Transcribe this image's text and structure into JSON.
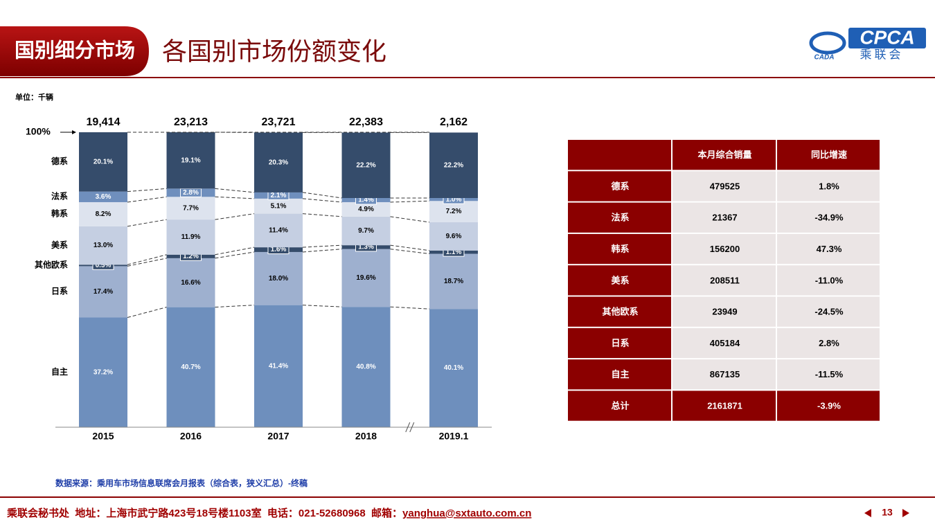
{
  "header": {
    "section": "国别细分市场",
    "title": "各国别市场份额变化",
    "logo_main": "CPCA",
    "logo_sub": "乘联会",
    "logo_left": "CADA"
  },
  "chart_data": {
    "type": "stacked_bar_100",
    "unit": "单位：千辆",
    "categories": [
      "2015",
      "2016",
      "2017",
      "2018",
      "2019.1"
    ],
    "totals": {
      "values": [
        19414,
        23213,
        23721,
        22383,
        2162
      ],
      "value_labels": [
        "19,414",
        "23,213",
        "23,721",
        "22,383",
        "2,162"
      ]
    },
    "ylim": [
      0,
      100
    ],
    "yticks": [
      {
        "value": 100,
        "label": "100%"
      }
    ],
    "series": [
      {
        "name": "自主",
        "color": "#6e8fbd",
        "values": [
          37.2,
          40.7,
          41.4,
          40.8,
          40.1
        ],
        "value_labels": [
          "37.2%",
          "40.7%",
          "41.4%",
          "40.8%",
          "40.1%"
        ]
      },
      {
        "name": "日系",
        "color": "#9eb0cf",
        "values": [
          17.4,
          16.6,
          18,
          19.6,
          18.7
        ],
        "value_labels": [
          "17.4%",
          "16.6%",
          "18.0%",
          "19.6%",
          "18.7%"
        ]
      },
      {
        "name": "其他欧系",
        "color": "#354c6b",
        "values": [
          0.5,
          1.2,
          1.6,
          1.3,
          1.1
        ],
        "value_labels": [
          "0.5%",
          "1.2%",
          "1.6%",
          "1.3%",
          "1.1%"
        ]
      },
      {
        "name": "美系",
        "color": "#c5cfe2",
        "values": [
          13,
          11.9,
          11.4,
          9.7,
          9.6
        ],
        "value_labels": [
          "13.0%",
          "11.9%",
          "11.4%",
          "9.7%",
          "9.6%"
        ]
      },
      {
        "name": "韩系",
        "color": "#dde3ee",
        "values": [
          8.2,
          7.7,
          5.1,
          4.9,
          7.2
        ],
        "value_labels": [
          "8.2%",
          "7.7%",
          "5.1%",
          "4.9%",
          "7.2%"
        ]
      },
      {
        "name": "法系",
        "color": "#6f8fbd",
        "values": [
          3.6,
          2.8,
          2.1,
          1.4,
          1
        ],
        "value_labels": [
          "3.6%",
          "2.8%",
          "2.1%",
          "1.4%",
          "1.0%"
        ]
      },
      {
        "name": "德系",
        "color": "#354c6b",
        "values": [
          20.1,
          19.1,
          20.3,
          22.2,
          22.2
        ],
        "value_labels": [
          "20.1%",
          "19.1%",
          "20.3%",
          "22.2%",
          "22.2%"
        ]
      }
    ],
    "source": "数据来源：乘用车市场信息联席会月报表（综合表，狭义汇总）-终稿"
  },
  "table": {
    "header": [
      "本月综合销量",
      "同比增速"
    ],
    "rows": [
      [
        "德系",
        "479525",
        "1.8%"
      ],
      [
        "法系",
        "21367",
        "-34.9%"
      ],
      [
        "韩系",
        "156200",
        "47.3%"
      ],
      [
        "美系",
        "208511",
        "-11.0%"
      ],
      [
        "其他欧系",
        "23949",
        "-24.5%"
      ],
      [
        "日系",
        "405184",
        "2.8%"
      ],
      [
        "自主",
        "867135",
        "-11.5%"
      ]
    ],
    "total": [
      "总计",
      "2161871",
      "-3.9%"
    ]
  },
  "footer": {
    "contact": "乘联会秘书处  地址：上海市武宁路423号18号楼1103室  电话：021-52680968  邮箱：",
    "email": "yanghua@sxtauto.com.cn",
    "page": "13"
  }
}
